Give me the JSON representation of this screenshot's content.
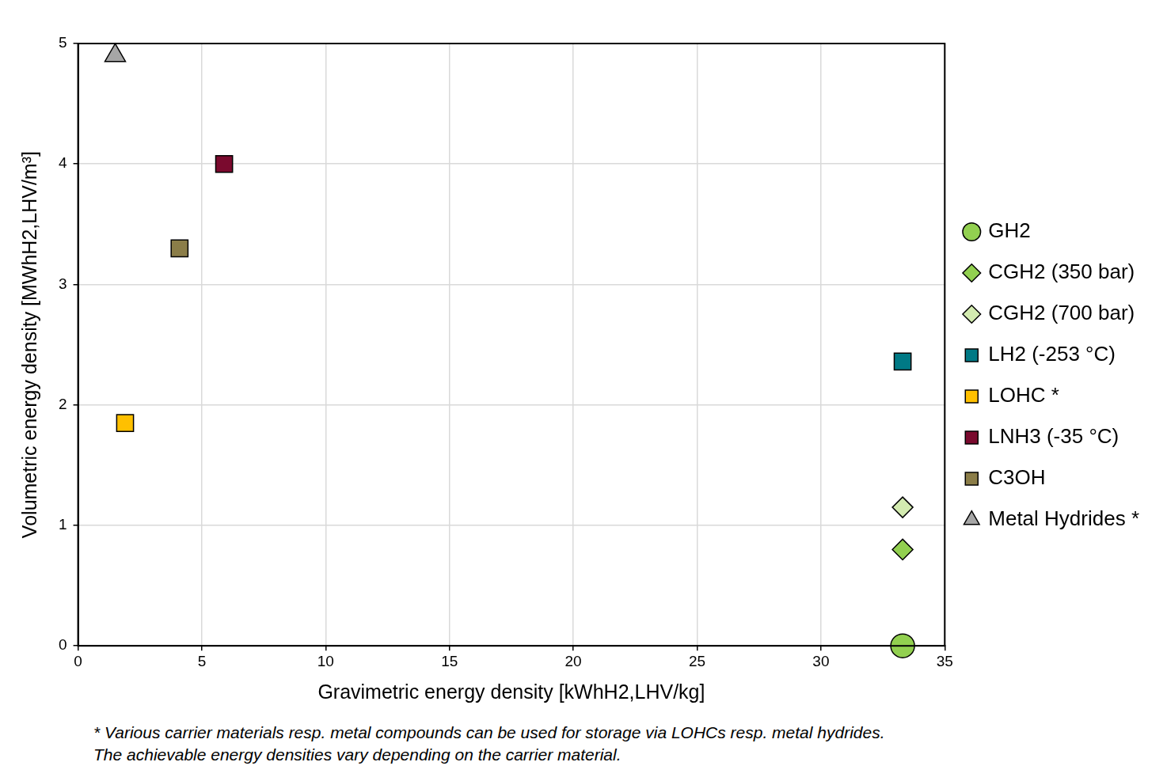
{
  "chart_data": {
    "type": "scatter",
    "x_label": "Gravimetric energy density [kWhH2,LHV/kg]",
    "y_label": "Volumetric energy density [MWhH2,LHV/m³]",
    "footnote": "* Various carrier materials resp. metal compounds can be used for storage via LOHCs resp. metal hydrides. The achievable energy densities vary depending on the carrier material.",
    "xlim": [
      0,
      35
    ],
    "xticks": [
      0,
      5,
      10,
      15,
      20,
      25,
      30,
      35
    ],
    "ylim": [
      0,
      5
    ],
    "yticks": [
      0,
      1,
      2,
      3,
      4,
      5
    ],
    "grid": true,
    "legend": "right",
    "series": [
      {
        "name": "GH2",
        "color": "#92d050",
        "marker": "circle",
        "x": [
          33.3
        ],
        "values": [
          0
        ]
      },
      {
        "name": "CGH2 (350 bar)",
        "color": "#92d050",
        "marker": "diamond",
        "x": [
          33.3
        ],
        "values": [
          0.8
        ]
      },
      {
        "name": "CGH2 (700 bar)",
        "color": "#d3ebb0",
        "marker": "diamond",
        "x": [
          33.3
        ],
        "values": [
          1.15
        ]
      },
      {
        "name": "LH2 (-253 °C)",
        "color": "#007985",
        "marker": "square",
        "x": [
          33.3
        ],
        "values": [
          2.36
        ]
      },
      {
        "name": "LOHC *",
        "color": "#ffc000",
        "marker": "square",
        "x": [
          1.9
        ],
        "values": [
          1.85
        ]
      },
      {
        "name": "LNH3 (-35 °C)",
        "color": "#7a0a2e",
        "marker": "square",
        "x": [
          5.9
        ],
        "values": [
          4.0
        ]
      },
      {
        "name": "C3OH",
        "color": "#8b7d48",
        "marker": "square",
        "x": [
          4.1
        ],
        "values": [
          3.3
        ]
      },
      {
        "name": "Metal Hydrides *",
        "color": "#a6a6a6",
        "marker": "triangle",
        "x": [
          1.5
        ],
        "values": [
          4.9
        ]
      }
    ]
  }
}
